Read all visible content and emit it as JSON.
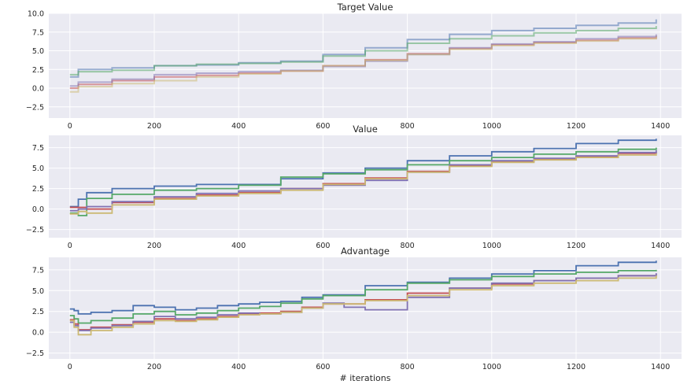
{
  "chart_data": [
    {
      "type": "line",
      "title": "Target Value",
      "xlabel": "",
      "ylabel": "",
      "xlim": [
        -50,
        1450
      ],
      "ylim": [
        -4,
        10
      ],
      "xticks": [
        0,
        200,
        400,
        600,
        800,
        1000,
        1200,
        1400
      ],
      "yticks": [
        -2.5,
        0.0,
        2.5,
        5.0,
        7.5,
        10.0
      ],
      "ytick_labels": [
        "−2.5",
        "0.0",
        "2.5",
        "5.0",
        "7.5",
        "10.0"
      ],
      "grid": true,
      "alpha": 0.55,
      "series": [
        {
          "color": "#4c72b0",
          "x": [
            0,
            20,
            100,
            200,
            300,
            400,
            500,
            600,
            700,
            800,
            900,
            1000,
            1100,
            1200,
            1300,
            1390
          ],
          "values": [
            1.5,
            2.5,
            2.7,
            3.0,
            3.1,
            3.4,
            3.6,
            4.5,
            5.4,
            6.5,
            7.2,
            7.7,
            8.0,
            8.4,
            8.7,
            9.2
          ]
        },
        {
          "color": "#55a868",
          "x": [
            0,
            20,
            100,
            200,
            300,
            400,
            500,
            600,
            700,
            800,
            900,
            1000,
            1100,
            1200,
            1300,
            1390
          ],
          "values": [
            1.8,
            2.2,
            2.4,
            3.0,
            3.2,
            3.3,
            3.5,
            4.3,
            5.0,
            6.0,
            6.6,
            7.0,
            7.4,
            7.7,
            8.0,
            8.3
          ]
        },
        {
          "color": "#c44e52",
          "x": [
            0,
            20,
            100,
            200,
            300,
            400,
            500,
            600,
            700,
            800,
            900,
            1000,
            1100,
            1200,
            1300,
            1390
          ],
          "values": [
            0.0,
            0.5,
            1.0,
            1.5,
            1.7,
            2.0,
            2.3,
            3.0,
            3.8,
            4.6,
            5.3,
            5.8,
            6.1,
            6.4,
            6.7,
            7.0
          ]
        },
        {
          "color": "#8172b2",
          "x": [
            0,
            20,
            100,
            200,
            300,
            400,
            500,
            600,
            700,
            800,
            900,
            1000,
            1100,
            1200,
            1300,
            1390
          ],
          "values": [
            0.3,
            0.8,
            1.2,
            1.8,
            2.0,
            2.2,
            2.4,
            2.9,
            3.6,
            4.5,
            5.4,
            5.9,
            6.2,
            6.6,
            6.9,
            7.2
          ]
        },
        {
          "color": "#ccb974",
          "x": [
            0,
            20,
            100,
            200,
            300,
            400,
            500,
            600,
            700,
            800,
            900,
            1000,
            1100,
            1200,
            1300,
            1390
          ],
          "values": [
            -0.5,
            0.2,
            0.6,
            1.0,
            1.5,
            1.9,
            2.3,
            3.0,
            3.7,
            4.5,
            5.2,
            5.7,
            6.0,
            6.3,
            6.6,
            6.9
          ]
        }
      ]
    },
    {
      "type": "line",
      "title": "Value",
      "xlabel": "",
      "ylabel": "",
      "xlim": [
        -50,
        1450
      ],
      "ylim": [
        -3.5,
        9
      ],
      "xticks": [
        0,
        200,
        400,
        600,
        800,
        1000,
        1200,
        1400
      ],
      "yticks": [
        -2.5,
        0.0,
        2.5,
        5.0,
        7.5
      ],
      "ytick_labels": [
        "−2.5",
        "0.0",
        "2.5",
        "5.0",
        "7.5"
      ],
      "grid": true,
      "alpha": 1,
      "series": [
        {
          "color": "#4c72b0",
          "x": [
            0,
            20,
            40,
            100,
            200,
            300,
            400,
            500,
            600,
            700,
            800,
            900,
            1000,
            1100,
            1200,
            1300,
            1390
          ],
          "values": [
            0.3,
            1.2,
            2.0,
            2.5,
            2.8,
            3.0,
            3.0,
            3.7,
            4.4,
            5.0,
            5.9,
            6.5,
            7.0,
            7.4,
            8.0,
            8.4,
            8.6
          ]
        },
        {
          "color": "#55a868",
          "x": [
            0,
            20,
            40,
            100,
            200,
            300,
            400,
            500,
            600,
            700,
            800,
            900,
            1000,
            1100,
            1200,
            1300,
            1390
          ],
          "values": [
            -0.5,
            -0.8,
            1.3,
            1.8,
            2.3,
            2.5,
            2.9,
            3.9,
            4.3,
            4.8,
            5.4,
            5.9,
            6.3,
            6.7,
            7.0,
            7.3,
            7.5
          ]
        },
        {
          "color": "#c44e52",
          "x": [
            0,
            20,
            40,
            100,
            200,
            300,
            400,
            500,
            600,
            700,
            800,
            900,
            1000,
            1100,
            1200,
            1300,
            1390
          ],
          "values": [
            0.2,
            0.2,
            0.0,
            0.8,
            1.3,
            1.7,
            2.0,
            2.5,
            3.1,
            3.8,
            4.6,
            5.3,
            5.8,
            6.1,
            6.4,
            6.8,
            7.0
          ]
        },
        {
          "color": "#8172b2",
          "x": [
            0,
            20,
            40,
            100,
            200,
            300,
            400,
            500,
            600,
            700,
            800,
            900,
            1000,
            1100,
            1200,
            1300,
            1390
          ],
          "values": [
            -0.2,
            0.0,
            0.3,
            0.9,
            1.5,
            1.9,
            2.2,
            2.5,
            2.9,
            3.5,
            4.5,
            5.4,
            5.9,
            6.2,
            6.5,
            6.9,
            7.2
          ]
        },
        {
          "color": "#ccb974",
          "x": [
            0,
            20,
            40,
            100,
            200,
            300,
            400,
            500,
            600,
            700,
            800,
            900,
            1000,
            1100,
            1200,
            1300,
            1390
          ],
          "values": [
            -0.6,
            -0.3,
            -0.5,
            0.5,
            1.2,
            1.6,
            1.9,
            2.3,
            3.0,
            3.7,
            4.5,
            5.2,
            5.7,
            6.0,
            6.3,
            6.6,
            6.8
          ]
        }
      ]
    },
    {
      "type": "line",
      "title": "Advantage",
      "xlabel": "# iterations",
      "ylabel": "",
      "xlim": [
        -50,
        1450
      ],
      "ylim": [
        -3.2,
        9
      ],
      "xticks": [
        0,
        200,
        400,
        600,
        800,
        1000,
        1200,
        1400
      ],
      "yticks": [
        -2.5,
        0.0,
        2.5,
        5.0,
        7.5
      ],
      "ytick_labels": [
        "−2.5",
        "0.0",
        "2.5",
        "5.0",
        "7.5"
      ],
      "grid": true,
      "alpha": 1,
      "series": [
        {
          "color": "#4c72b0",
          "x": [
            0,
            10,
            20,
            50,
            100,
            150,
            200,
            250,
            300,
            350,
            400,
            450,
            500,
            550,
            600,
            700,
            800,
            900,
            1000,
            1100,
            1200,
            1300,
            1390
          ],
          "values": [
            2.8,
            2.6,
            2.2,
            2.4,
            2.6,
            3.2,
            3.0,
            2.7,
            2.9,
            3.2,
            3.4,
            3.6,
            3.7,
            4.2,
            4.5,
            5.6,
            6.0,
            6.5,
            7.0,
            7.4,
            8.0,
            8.4,
            8.6
          ]
        },
        {
          "color": "#55a868",
          "x": [
            0,
            10,
            20,
            50,
            100,
            150,
            200,
            250,
            300,
            350,
            400,
            450,
            500,
            550,
            600,
            700,
            800,
            900,
            1000,
            1100,
            1200,
            1300,
            1390
          ],
          "values": [
            2.0,
            1.6,
            1.1,
            1.4,
            1.7,
            2.2,
            2.5,
            2.1,
            2.3,
            2.6,
            2.9,
            3.1,
            3.5,
            4.0,
            4.4,
            5.1,
            5.9,
            6.3,
            6.7,
            7.0,
            7.2,
            7.4,
            7.5
          ]
        },
        {
          "color": "#c44e52",
          "x": [
            0,
            10,
            20,
            50,
            100,
            150,
            200,
            250,
            300,
            350,
            400,
            450,
            500,
            550,
            600,
            700,
            800,
            900,
            1000,
            1100,
            1200,
            1300,
            1390
          ],
          "values": [
            1.5,
            1.0,
            0.3,
            0.6,
            0.9,
            1.2,
            1.6,
            1.4,
            1.6,
            1.9,
            2.2,
            2.3,
            2.5,
            3.0,
            3.4,
            3.9,
            4.7,
            5.3,
            5.8,
            6.2,
            6.5,
            6.8,
            7.0
          ]
        },
        {
          "color": "#8172b2",
          "x": [
            0,
            10,
            20,
            50,
            100,
            150,
            200,
            250,
            300,
            350,
            400,
            450,
            500,
            550,
            600,
            650,
            700,
            800,
            900,
            1000,
            1100,
            1200,
            1300,
            1390
          ],
          "values": [
            1.2,
            0.8,
            0.2,
            0.5,
            0.8,
            1.3,
            1.9,
            1.6,
            1.8,
            2.1,
            2.3,
            2.2,
            2.4,
            2.9,
            3.5,
            3.0,
            2.7,
            4.2,
            5.3,
            5.9,
            6.2,
            6.5,
            6.8,
            7.1
          ]
        },
        {
          "color": "#ccb974",
          "x": [
            0,
            10,
            20,
            50,
            100,
            150,
            200,
            250,
            300,
            350,
            400,
            450,
            500,
            550,
            600,
            700,
            800,
            900,
            1000,
            1100,
            1200,
            1300,
            1390
          ],
          "values": [
            1.4,
            0.6,
            -0.3,
            0.2,
            0.6,
            1.0,
            1.4,
            1.3,
            1.5,
            1.8,
            2.1,
            2.2,
            2.4,
            2.9,
            3.4,
            3.8,
            4.4,
            5.1,
            5.6,
            5.9,
            6.2,
            6.5,
            6.8
          ]
        }
      ]
    }
  ]
}
